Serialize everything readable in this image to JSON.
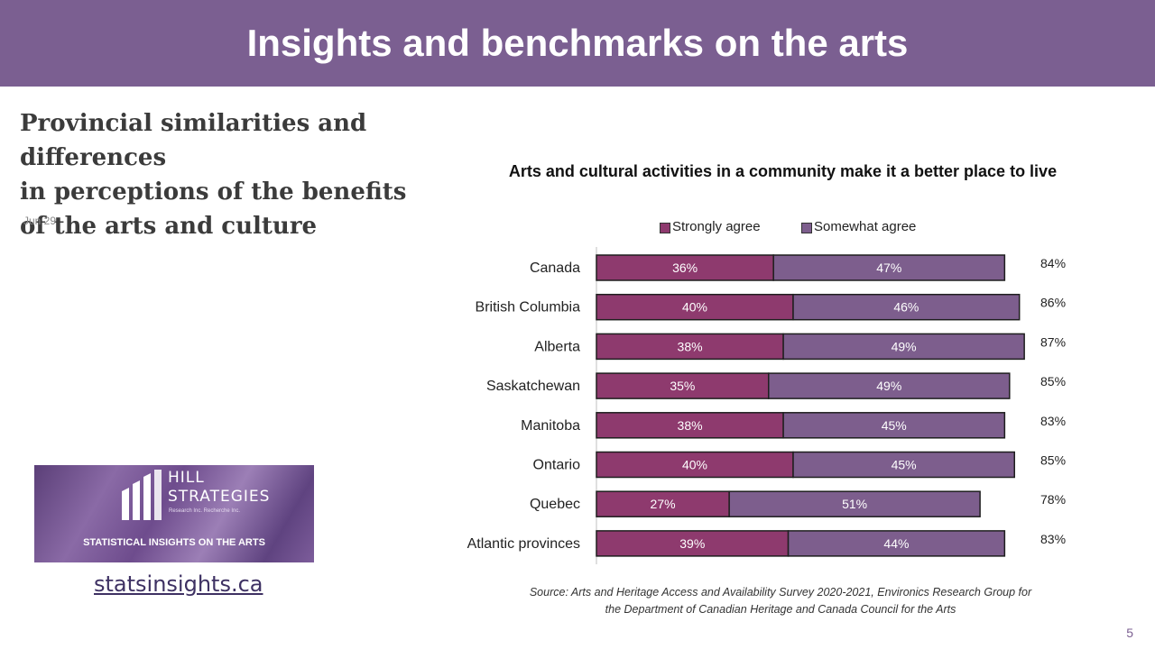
{
  "header": {
    "title": "Insights and benchmarks on the arts"
  },
  "article": {
    "title": "Provincial similarities and differences\nin  perceptions of the benefits\nof the arts and  culture",
    "date": "Jun 29"
  },
  "logo": {
    "name": "HILL\nSTRATEGIES",
    "subtitle": "Research Inc.  Recherche Inc.",
    "tagline": "STATISTICAL INSIGHTS ON THE ARTS"
  },
  "link": {
    "text": "statsinsights.ca"
  },
  "page_number": "5",
  "colors": {
    "banner": "#7b5f91",
    "strongly": "#8e3a6e",
    "somewhat": "#7d5e8d",
    "bar_border": "#1f1f1f"
  },
  "chart_data": {
    "type": "bar",
    "orientation": "horizontal",
    "stacked": true,
    "title": "Arts and cultural activities in a community make it a better place to live",
    "categories": [
      "Canada",
      "British Columbia",
      "Alberta",
      "Saskatchewan",
      "Manitoba",
      "Ontario",
      "Quebec",
      "Atlantic provinces"
    ],
    "series": [
      {
        "name": "Strongly agree",
        "color": "#8e3a6e",
        "values": [
          36,
          40,
          38,
          35,
          38,
          40,
          27,
          39
        ],
        "labels": [
          "36%",
          "40%",
          "38%",
          "35%",
          "38%",
          "40%",
          "27%",
          "39%"
        ]
      },
      {
        "name": "Somewhat agree",
        "color": "#7d5e8d",
        "values": [
          47,
          46,
          49,
          49,
          45,
          45,
          51,
          44
        ],
        "labels": [
          "47%",
          "46%",
          "49%",
          "49%",
          "45%",
          "45%",
          "51%",
          "44%"
        ]
      }
    ],
    "totals": [
      84,
      86,
      87,
      85,
      83,
      85,
      78,
      83
    ],
    "total_labels": [
      "84%",
      "86%",
      "87%",
      "85%",
      "83%",
      "85%",
      "78%",
      "83%"
    ],
    "xlim": [
      0,
      100
    ],
    "legend_position": "top",
    "grid": false,
    "source": "Source: Arts and Heritage Access and Availability Survey 2020-2021, Environics Research Group for\nthe Department of Canadian Heritage and Canada Council for the Arts"
  }
}
